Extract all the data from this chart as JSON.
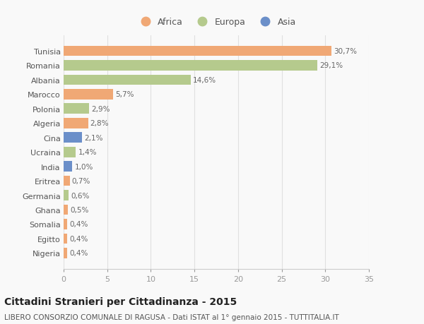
{
  "countries": [
    "Tunisia",
    "Romania",
    "Albania",
    "Marocco",
    "Polonia",
    "Algeria",
    "Cina",
    "Ucraina",
    "India",
    "Eritrea",
    "Germania",
    "Ghana",
    "Somalia",
    "Egitto",
    "Nigeria"
  ],
  "values": [
    30.7,
    29.1,
    14.6,
    5.7,
    2.9,
    2.8,
    2.1,
    1.4,
    1.0,
    0.7,
    0.6,
    0.5,
    0.4,
    0.4,
    0.4
  ],
  "labels": [
    "30,7%",
    "29,1%",
    "14,6%",
    "5,7%",
    "2,9%",
    "2,8%",
    "2,1%",
    "1,4%",
    "1,0%",
    "0,7%",
    "0,6%",
    "0,5%",
    "0,4%",
    "0,4%",
    "0,4%"
  ],
  "continents": [
    "Africa",
    "Europa",
    "Europa",
    "Africa",
    "Europa",
    "Africa",
    "Asia",
    "Europa",
    "Asia",
    "Africa",
    "Europa",
    "Africa",
    "Africa",
    "Africa",
    "Africa"
  ],
  "colors": {
    "Africa": "#f0a875",
    "Europa": "#b5ca8d",
    "Asia": "#6b8fc9"
  },
  "xlim": [
    0,
    35
  ],
  "xticks": [
    0,
    5,
    10,
    15,
    20,
    25,
    30,
    35
  ],
  "title": "Cittadini Stranieri per Cittadinanza - 2015",
  "subtitle": "LIBERO CONSORZIO COMUNALE DI RAGUSA - Dati ISTAT al 1° gennaio 2015 - TUTTITALIA.IT",
  "background_color": "#f9f9f9",
  "bar_height": 0.72,
  "title_fontsize": 10,
  "subtitle_fontsize": 7.5,
  "tick_fontsize": 8,
  "label_fontsize": 7.5,
  "legend_fontsize": 9
}
